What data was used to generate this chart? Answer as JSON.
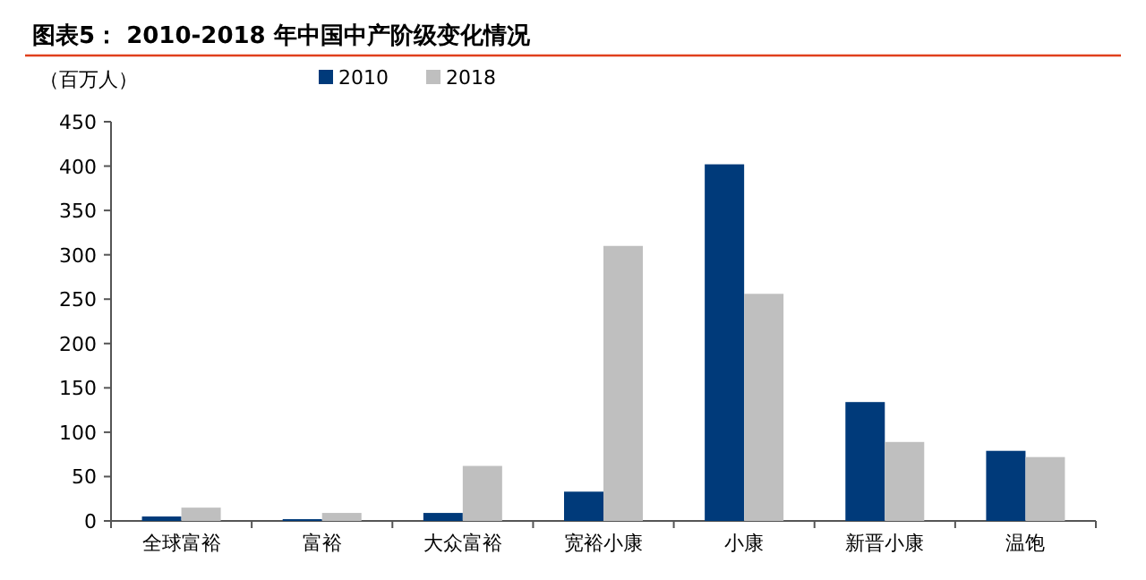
{
  "chart_data": {
    "type": "bar",
    "title": "图表5：  2010-2018 年中国中产阶级变化情况",
    "ylabel": "（百万人）",
    "categories": [
      "全球富裕",
      "富裕",
      "大众富裕",
      "宽裕小康",
      "小康",
      "新晋小康",
      "温饱"
    ],
    "series": [
      {
        "name": "2010",
        "color": "#003a7a",
        "values": [
          5,
          2,
          9,
          33,
          402,
          134,
          79
        ]
      },
      {
        "name": "2018",
        "color": "#bfbfbf",
        "values": [
          15,
          9,
          62,
          310,
          256,
          89,
          72
        ]
      }
    ],
    "ylim": [
      0,
      450
    ],
    "yticks": [
      0,
      50,
      100,
      150,
      200,
      250,
      300,
      350,
      400,
      450
    ],
    "legend": "top",
    "grid": false
  }
}
